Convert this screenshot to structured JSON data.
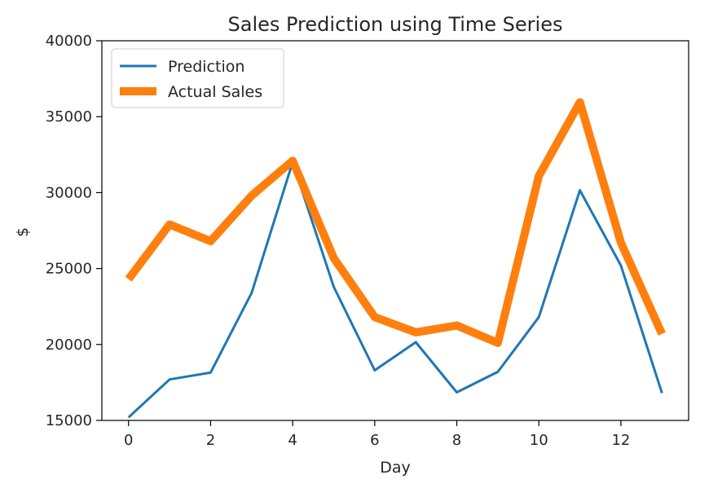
{
  "chart_data": {
    "type": "line",
    "title": "Sales Prediction using Time Series",
    "xlabel": "Day",
    "ylabel": "$",
    "xlim": [
      -0.65,
      13.65
    ],
    "ylim": [
      15000,
      40000
    ],
    "xticks": [
      0,
      2,
      4,
      6,
      8,
      10,
      12
    ],
    "yticks": [
      15000,
      20000,
      25000,
      30000,
      35000,
      40000
    ],
    "grid": false,
    "legend_position": "top-left",
    "x": [
      0,
      1,
      2,
      3,
      4,
      5,
      6,
      7,
      8,
      9,
      10,
      11,
      12,
      13
    ],
    "series": [
      {
        "name": "Prediction",
        "color": "#1f77b4",
        "values": [
          15200,
          17700,
          18150,
          23400,
          32000,
          23800,
          18300,
          20150,
          16850,
          18200,
          21800,
          30150,
          25200,
          16800
        ]
      },
      {
        "name": "Actual Sales",
        "color": "#ff7f0e",
        "values": [
          24300,
          27900,
          26800,
          29800,
          32100,
          25700,
          21800,
          20800,
          21250,
          20100,
          31100,
          35950,
          26700,
          20700
        ]
      }
    ]
  }
}
